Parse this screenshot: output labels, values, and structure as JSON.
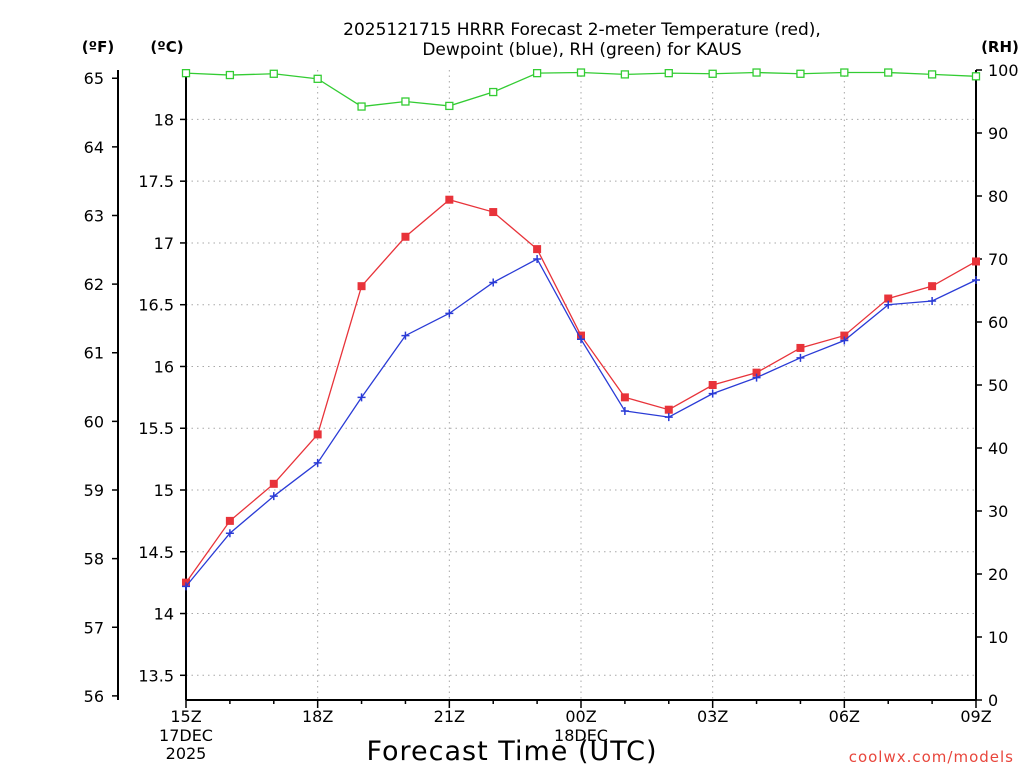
{
  "colors": {
    "temp": "#e8333a",
    "dewpoint": "#2a3bd6",
    "rh": "#33cc33",
    "credit": "#e8463c"
  },
  "title_line1": "2025121715 HRRR Forecast 2-meter Temperature (red),",
  "title_line2": "Dewpoint (blue), RH (green) for KAUS",
  "unit_f": "(ºF)",
  "unit_c": "(ºC)",
  "unit_rh": "(RH)",
  "xlabel": "Forecast Time (UTC)",
  "credit": "coolwx.com/models",
  "chart_data": {
    "type": "line",
    "x": [
      "15Z",
      "16Z",
      "17Z",
      "18Z",
      "19Z",
      "20Z",
      "21Z",
      "22Z",
      "23Z",
      "00Z",
      "01Z",
      "02Z",
      "03Z",
      "04Z",
      "05Z",
      "06Z",
      "07Z",
      "08Z",
      "09Z"
    ],
    "x_ticks": [
      {
        "label": "15Z",
        "sub": [
          "17DEC",
          "2025"
        ],
        "index": 0
      },
      {
        "label": "18Z",
        "sub": [],
        "index": 3
      },
      {
        "label": "21Z",
        "sub": [],
        "index": 6
      },
      {
        "label": "00Z",
        "sub": [
          "18DEC"
        ],
        "index": 9
      },
      {
        "label": "03Z",
        "sub": [],
        "index": 12
      },
      {
        "label": "06Z",
        "sub": [],
        "index": 15
      },
      {
        "label": "09Z",
        "sub": [],
        "index": 18
      }
    ],
    "xlabel": "Forecast Time (UTC)",
    "y_left_c": {
      "label": "(ºC)",
      "range": [
        13.3,
        18.4
      ],
      "ticks": [
        "13.5",
        "14",
        "14.5",
        "15",
        "15.5",
        "16",
        "16.5",
        "17",
        "17.5",
        "18"
      ]
    },
    "y_left_f": {
      "label": "(ºF)",
      "range": [
        55.94,
        65.12
      ],
      "ticks": [
        "56",
        "57",
        "58",
        "59",
        "60",
        "61",
        "62",
        "63",
        "64",
        "65"
      ]
    },
    "y_right": {
      "label": "(RH)",
      "range": [
        0,
        100
      ],
      "ticks": [
        "0",
        "10",
        "20",
        "30",
        "40",
        "50",
        "60",
        "70",
        "80",
        "90",
        "100"
      ]
    },
    "grid": true,
    "series": [
      {
        "name": "Temperature",
        "color": "#e8333a",
        "marker": "filled-square",
        "unit": "°C",
        "values": [
          14.25,
          14.75,
          15.05,
          15.45,
          16.65,
          17.05,
          17.35,
          17.25,
          16.95,
          16.25,
          15.75,
          15.65,
          15.85,
          15.95,
          16.15,
          16.25,
          16.55,
          16.65,
          16.85
        ]
      },
      {
        "name": "Dewpoint",
        "color": "#2a3bd6",
        "marker": "plus",
        "unit": "°C",
        "values": [
          14.22,
          14.65,
          14.95,
          15.22,
          15.75,
          16.25,
          16.43,
          16.68,
          16.87,
          16.22,
          15.64,
          15.59,
          15.78,
          15.91,
          16.07,
          16.21,
          16.5,
          16.53,
          16.7
        ]
      },
      {
        "name": "RH",
        "color": "#33cc33",
        "marker": "open-square",
        "unit": "%",
        "values": [
          99.5,
          99.2,
          99.4,
          98.6,
          94.2,
          95.0,
          94.3,
          96.5,
          99.5,
          99.6,
          99.3,
          99.5,
          99.4,
          99.6,
          99.4,
          99.6,
          99.6,
          99.3,
          99.0
        ]
      }
    ]
  }
}
